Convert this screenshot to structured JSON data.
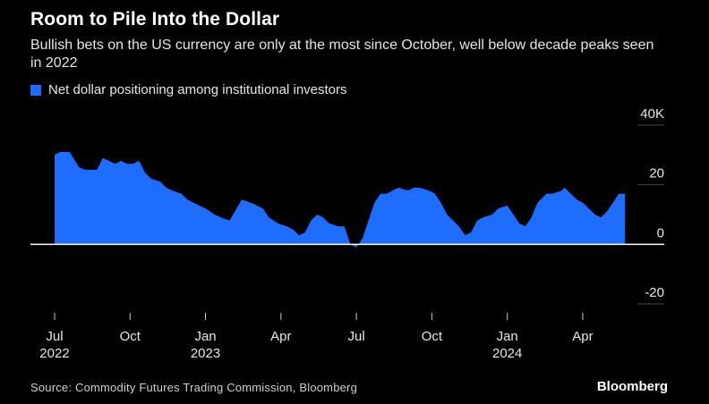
{
  "colors": {
    "background": "#000000",
    "series": "#1f6dfd",
    "axis": "#ffffff",
    "grid": "#444444"
  },
  "legend": {
    "label": "Net dollar positioning among institutional investors"
  },
  "source": "Source: Commodity Futures Trading Commission, Bloomberg",
  "brand": "Bloomberg",
  "chart_data": {
    "type": "area",
    "title": "Room to Pile Into the Dollar",
    "subtitle": "Bullish bets on the US currency are only at the most since October, well below decade peaks seen in 2022",
    "xlabel": "",
    "ylabel": "",
    "ylim": [
      -20,
      40
    ],
    "yticks": [
      {
        "value": 40,
        "label": "40K"
      },
      {
        "value": 20,
        "label": "20"
      },
      {
        "value": 0,
        "label": "0"
      },
      {
        "value": -20,
        "label": "-20"
      }
    ],
    "xlim": [
      2022.42,
      2024.52
    ],
    "xticks": [
      {
        "x": 2022.5,
        "label": "Jul",
        "sublabel": "2022"
      },
      {
        "x": 2022.75,
        "label": "Oct",
        "sublabel": ""
      },
      {
        "x": 2023.0,
        "label": "Jan",
        "sublabel": "2023"
      },
      {
        "x": 2023.25,
        "label": "Apr",
        "sublabel": ""
      },
      {
        "x": 2023.5,
        "label": "Jul",
        "sublabel": ""
      },
      {
        "x": 2023.75,
        "label": "Oct",
        "sublabel": ""
      },
      {
        "x": 2024.0,
        "label": "Jan",
        "sublabel": "2024"
      },
      {
        "x": 2024.25,
        "label": "Apr",
        "sublabel": ""
      }
    ],
    "series": [
      {
        "name": "Net dollar positioning among institutional investors",
        "x": [
          2022.5,
          2022.52,
          2022.55,
          2022.58,
          2022.6,
          2022.64,
          2022.66,
          2022.68,
          2022.7,
          2022.72,
          2022.74,
          2022.76,
          2022.78,
          2022.8,
          2022.82,
          2022.85,
          2022.87,
          2022.89,
          2022.92,
          2022.94,
          2022.96,
          2022.98,
          2023.0,
          2023.03,
          2023.05,
          2023.08,
          2023.12,
          2023.15,
          2023.19,
          2023.21,
          2023.24,
          2023.27,
          2023.29,
          2023.31,
          2023.33,
          2023.35,
          2023.37,
          2023.39,
          2023.41,
          2023.44,
          2023.46,
          2023.48,
          2023.5,
          2023.52,
          2023.54,
          2023.56,
          2023.58,
          2023.6,
          2023.62,
          2023.64,
          2023.67,
          2023.69,
          2023.71,
          2023.74,
          2023.76,
          2023.78,
          2023.8,
          2023.82,
          2023.84,
          2023.86,
          2023.88,
          2023.9,
          2023.92,
          2023.95,
          2023.97,
          2024.0,
          2024.02,
          2024.04,
          2024.06,
          2024.08,
          2024.1,
          2024.13,
          2024.15,
          2024.18,
          2024.19,
          2024.21,
          2024.23,
          2024.25,
          2024.27,
          2024.29,
          2024.31,
          2024.33,
          2024.35,
          2024.37,
          2024.39
        ],
        "values": [
          30,
          31,
          31,
          26,
          25,
          25,
          29,
          28,
          27,
          28,
          27,
          27,
          28,
          24,
          22,
          21,
          19,
          18,
          17,
          15,
          14,
          13,
          12,
          10,
          9,
          8,
          15,
          14,
          12,
          9,
          7,
          6,
          5,
          3,
          4,
          8,
          10,
          9,
          7,
          6,
          6,
          0,
          -1,
          2,
          8,
          14,
          17,
          17,
          18,
          19,
          18,
          19,
          19,
          18,
          17,
          14,
          10,
          8,
          6,
          3,
          4,
          8,
          9,
          10,
          12,
          13,
          10,
          7,
          6,
          9,
          14,
          17,
          17,
          18,
          19,
          17,
          15,
          14,
          12,
          10,
          9,
          11,
          14,
          17,
          17
        ]
      }
    ]
  }
}
